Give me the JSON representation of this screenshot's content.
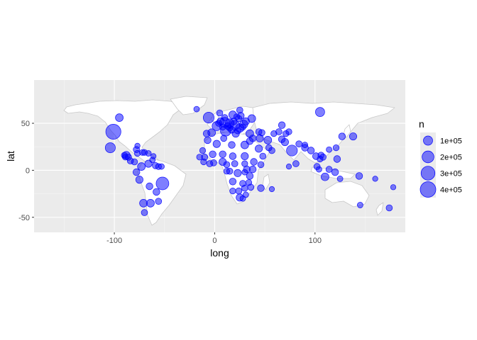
{
  "chart_data": {
    "type": "scatter",
    "title": "",
    "xlabel": "long",
    "ylabel": "lat",
    "xlim": [
      -180,
      190
    ],
    "ylim": [
      -66,
      96
    ],
    "xticks": [
      -100,
      0,
      100
    ],
    "yticks": [
      -50,
      0,
      50
    ],
    "xtick_labels": [
      "-100",
      "0",
      "100"
    ],
    "ytick_labels": [
      "-50",
      "0",
      "50"
    ],
    "grid": true,
    "background": "#ebebeb",
    "land_color": "#ffffff",
    "border_color": "#c8c8c8",
    "point_color": "#0000ff",
    "point_alpha": 0.5,
    "legend": {
      "title": "n",
      "position": "right",
      "entries": [
        {
          "label": "1e+05",
          "n": 100000
        },
        {
          "label": "2e+05",
          "n": 200000
        },
        {
          "label": "3e+05",
          "n": 300000
        },
        {
          "label": "4e+05",
          "n": 400000
        }
      ]
    },
    "points": [
      {
        "x": -101,
        "y": 41,
        "n": 370000
      },
      {
        "x": -52,
        "y": -14,
        "n": 240000
      },
      {
        "x": -104,
        "y": 24,
        "n": 130000
      },
      {
        "x": 105,
        "y": 62,
        "n": 100000
      },
      {
        "x": 77,
        "y": 21,
        "n": 160000
      },
      {
        "x": -6,
        "y": 56,
        "n": 160000
      },
      {
        "x": 10,
        "y": 51,
        "n": 130000
      },
      {
        "x": 11,
        "y": 42,
        "n": 150000
      },
      {
        "x": 20,
        "y": 48,
        "n": 110000
      },
      {
        "x": 2,
        "y": 47,
        "n": 100000
      },
      {
        "x": 25,
        "y": 45,
        "n": 80000
      },
      {
        "x": 29,
        "y": 49,
        "n": 70000
      },
      {
        "x": 15,
        "y": 50,
        "n": 90000
      },
      {
        "x": 18,
        "y": 59,
        "n": 60000
      },
      {
        "x": 26,
        "y": 58,
        "n": 40000
      },
      {
        "x": 6,
        "y": 52,
        "n": 50000
      },
      {
        "x": -3,
        "y": 40,
        "n": 60000
      },
      {
        "x": -8,
        "y": 39,
        "n": 40000
      },
      {
        "x": 21,
        "y": 39,
        "n": 50000
      },
      {
        "x": 35,
        "y": 39,
        "n": 60000
      },
      {
        "x": 17,
        "y": 43,
        "n": 40000
      },
      {
        "x": 23,
        "y": 42,
        "n": 30000
      },
      {
        "x": 31,
        "y": 52,
        "n": 50000
      },
      {
        "x": 37,
        "y": 55,
        "n": 60000
      },
      {
        "x": 5,
        "y": 61,
        "n": 30000
      },
      {
        "x": 10,
        "y": 56,
        "n": 30000
      },
      {
        "x": 25,
        "y": 64,
        "n": 30000
      },
      {
        "x": 19,
        "y": 52,
        "n": 40000
      },
      {
        "x": 13,
        "y": 47,
        "n": 40000
      },
      {
        "x": 8,
        "y": 46,
        "n": 30000
      },
      {
        "x": 4,
        "y": 50,
        "n": 30000
      },
      {
        "x": 15,
        "y": 45,
        "n": 30000
      },
      {
        "x": 24,
        "y": 55,
        "n": 30000
      },
      {
        "x": 22,
        "y": 57,
        "n": 25000
      },
      {
        "x": -18,
        "y": 65,
        "n": 20000
      },
      {
        "x": 28,
        "y": 46,
        "n": 30000
      },
      {
        "x": 44,
        "y": 41,
        "n": 30000
      },
      {
        "x": 47,
        "y": 40,
        "n": 30000
      },
      {
        "x": 45,
        "y": 34,
        "n": 50000
      },
      {
        "x": 53,
        "y": 32,
        "n": 60000
      },
      {
        "x": 38,
        "y": 34,
        "n": 40000
      },
      {
        "x": 35,
        "y": 31,
        "n": 40000
      },
      {
        "x": 44,
        "y": 23,
        "n": 50000
      },
      {
        "x": 54,
        "y": 24,
        "n": 30000
      },
      {
        "x": 57,
        "y": 21,
        "n": 30000
      },
      {
        "x": 48,
        "y": 15,
        "n": 30000
      },
      {
        "x": 30,
        "y": 27,
        "n": 60000
      },
      {
        "x": 17,
        "y": 27,
        "n": 40000
      },
      {
        "x": 2,
        "y": 28,
        "n": 50000
      },
      {
        "x": 9,
        "y": 34,
        "n": 30000
      },
      {
        "x": -7,
        "y": 32,
        "n": 40000
      },
      {
        "x": -12,
        "y": 21,
        "n": 25000
      },
      {
        "x": 30,
        "y": 15,
        "n": 50000
      },
      {
        "x": 39,
        "y": 9,
        "n": 40000
      },
      {
        "x": 46,
        "y": 6,
        "n": 30000
      },
      {
        "x": 18,
        "y": 15,
        "n": 40000
      },
      {
        "x": 8,
        "y": 17,
        "n": 40000
      },
      {
        "x": -2,
        "y": 17,
        "n": 40000
      },
      {
        "x": -10,
        "y": 14,
        "n": 30000
      },
      {
        "x": -15,
        "y": 14,
        "n": 25000
      },
      {
        "x": 8,
        "y": 9,
        "n": 50000
      },
      {
        "x": -1,
        "y": 8,
        "n": 30000
      },
      {
        "x": -5,
        "y": 7,
        "n": 30000
      },
      {
        "x": -11,
        "y": 9,
        "n": 25000
      },
      {
        "x": 12,
        "y": 6,
        "n": 30000
      },
      {
        "x": 20,
        "y": 7,
        "n": 30000
      },
      {
        "x": 30,
        "y": 7,
        "n": 25000
      },
      {
        "x": 38,
        "y": 1,
        "n": 40000
      },
      {
        "x": 32,
        "y": 1,
        "n": 40000
      },
      {
        "x": 23,
        "y": -3,
        "n": 50000
      },
      {
        "x": 15,
        "y": -1,
        "n": 30000
      },
      {
        "x": 12,
        "y": -1,
        "n": 25000
      },
      {
        "x": 35,
        "y": -6,
        "n": 40000
      },
      {
        "x": 30,
        "y": -2,
        "n": 20000
      },
      {
        "x": 18,
        "y": -12,
        "n": 40000
      },
      {
        "x": 28,
        "y": -14,
        "n": 30000
      },
      {
        "x": 34,
        "y": -13,
        "n": 25000
      },
      {
        "x": 36,
        "y": -18,
        "n": 30000
      },
      {
        "x": 30,
        "y": -19,
        "n": 30000
      },
      {
        "x": 18,
        "y": -22,
        "n": 25000
      },
      {
        "x": 24,
        "y": -22,
        "n": 30000
      },
      {
        "x": 46,
        "y": -19,
        "n": 40000
      },
      {
        "x": 25,
        "y": -29,
        "n": 50000
      },
      {
        "x": 31,
        "y": -26,
        "n": 20000
      },
      {
        "x": 28,
        "y": -30,
        "n": 20000
      },
      {
        "x": 57,
        "y": -20,
        "n": 15000
      },
      {
        "x": 67,
        "y": 33,
        "n": 40000
      },
      {
        "x": 70,
        "y": 30,
        "n": 50000
      },
      {
        "x": 84,
        "y": 28,
        "n": 30000
      },
      {
        "x": 90,
        "y": 27,
        "n": 20000
      },
      {
        "x": 90,
        "y": 24,
        "n": 40000
      },
      {
        "x": 96,
        "y": 21,
        "n": 40000
      },
      {
        "x": 101,
        "y": 15,
        "n": 40000
      },
      {
        "x": 106,
        "y": 16,
        "n": 30000
      },
      {
        "x": 105,
        "y": 12,
        "n": 25000
      },
      {
        "x": 108,
        "y": 14,
        "n": 30000
      },
      {
        "x": 102,
        "y": 4,
        "n": 30000
      },
      {
        "x": 104,
        "y": 1,
        "n": 20000
      },
      {
        "x": 114,
        "y": 1,
        "n": 30000
      },
      {
        "x": 122,
        "y": 12,
        "n": 40000
      },
      {
        "x": 121,
        "y": 24,
        "n": 25000
      },
      {
        "x": 127,
        "y": 36,
        "n": 40000
      },
      {
        "x": 138,
        "y": 36,
        "n": 50000
      },
      {
        "x": 114,
        "y": 22,
        "n": 20000
      },
      {
        "x": 67,
        "y": 48,
        "n": 40000
      },
      {
        "x": 64,
        "y": 41,
        "n": 30000
      },
      {
        "x": 71,
        "y": 39,
        "n": 25000
      },
      {
        "x": 74,
        "y": 41,
        "n": 25000
      },
      {
        "x": 59,
        "y": 39,
        "n": 25000
      },
      {
        "x": 81,
        "y": 7,
        "n": 30000
      },
      {
        "x": 74,
        "y": 4,
        "n": 15000
      },
      {
        "x": 110,
        "y": -7,
        "n": 60000
      },
      {
        "x": 120,
        "y": -2,
        "n": 40000
      },
      {
        "x": 125,
        "y": -9,
        "n": 20000
      },
      {
        "x": 144,
        "y": -6,
        "n": 40000
      },
      {
        "x": 160,
        "y": -9,
        "n": 15000
      },
      {
        "x": 178,
        "y": -18,
        "n": 15000
      },
      {
        "x": 174,
        "y": -40,
        "n": 30000
      },
      {
        "x": 145,
        "y": -37,
        "n": 20000
      },
      {
        "x": -95,
        "y": 56,
        "n": 60000
      },
      {
        "x": -88,
        "y": 16,
        "n": 60000
      },
      {
        "x": -86,
        "y": 14,
        "n": 30000
      },
      {
        "x": -84,
        "y": 10,
        "n": 30000
      },
      {
        "x": -80,
        "y": 9,
        "n": 30000
      },
      {
        "x": -89,
        "y": 14,
        "n": 25000
      },
      {
        "x": -90,
        "y": 16,
        "n": 25000
      },
      {
        "x": -78,
        "y": 22,
        "n": 30000
      },
      {
        "x": -77,
        "y": 18,
        "n": 25000
      },
      {
        "x": -72,
        "y": 19,
        "n": 25000
      },
      {
        "x": -70,
        "y": 19,
        "n": 25000
      },
      {
        "x": -66,
        "y": 18,
        "n": 20000
      },
      {
        "x": -61,
        "y": 15,
        "n": 15000
      },
      {
        "x": -62,
        "y": 11,
        "n": 20000
      },
      {
        "x": -77,
        "y": 26,
        "n": 15000
      },
      {
        "x": -73,
        "y": 4,
        "n": 60000
      },
      {
        "x": -66,
        "y": 7,
        "n": 50000
      },
      {
        "x": -59,
        "y": 5,
        "n": 30000
      },
      {
        "x": -56,
        "y": 4,
        "n": 25000
      },
      {
        "x": -53,
        "y": 4,
        "n": 20000
      },
      {
        "x": -78,
        "y": -2,
        "n": 40000
      },
      {
        "x": -75,
        "y": -10,
        "n": 50000
      },
      {
        "x": -65,
        "y": -17,
        "n": 40000
      },
      {
        "x": -58,
        "y": -23,
        "n": 40000
      },
      {
        "x": -56,
        "y": -33,
        "n": 30000
      },
      {
        "x": -64,
        "y": -35,
        "n": 60000
      },
      {
        "x": -71,
        "y": -35,
        "n": 60000
      },
      {
        "x": -70,
        "y": -45,
        "n": 30000
      }
    ]
  }
}
